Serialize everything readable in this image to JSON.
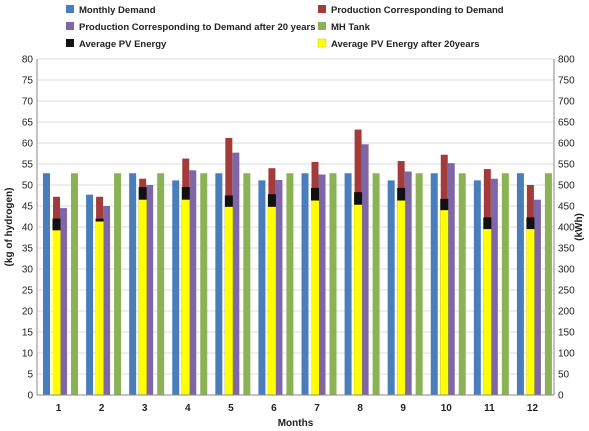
{
  "chart_data": {
    "type": "bar",
    "categories": [
      "1",
      "2",
      "3",
      "4",
      "5",
      "6",
      "7",
      "8",
      "9",
      "10",
      "11",
      "12"
    ],
    "xlabel": "Months",
    "ylabel_left": "(kg of hydrogen)",
    "ylabel_right": "(kWh)",
    "ylim_left": [
      0,
      80
    ],
    "ylim_right": [
      0,
      800
    ],
    "yticks_left": [
      "0",
      "5",
      "10",
      "15",
      "20",
      "25",
      "30",
      "35",
      "40",
      "45",
      "50",
      "55",
      "60",
      "65",
      "70",
      "75",
      "80"
    ],
    "yticks_right": [
      "0",
      "50",
      "100",
      "150",
      "200",
      "250",
      "300",
      "350",
      "400",
      "450",
      "500",
      "550",
      "600",
      "650",
      "700",
      "750",
      "800"
    ],
    "grid": true,
    "legend_position": "top",
    "series": [
      {
        "name": "Monthly Demand",
        "axis": "left",
        "color": "#4a7ebb",
        "values": [
          52.8,
          47.7,
          52.8,
          51.1,
          52.8,
          51.1,
          52.8,
          52.8,
          51.1,
          52.8,
          51.1,
          52.8
        ]
      },
      {
        "name": "Production Corresponding to Demand",
        "axis": "left",
        "color": "#a33b3b",
        "values": [
          47.2,
          47.2,
          51.5,
          56.3,
          61.2,
          54.0,
          55.5,
          63.2,
          55.7,
          57.2,
          53.8,
          50.0
        ]
      },
      {
        "name": "Production Corresponding to Demand after 20 years",
        "axis": "left",
        "color": "#7f66a6",
        "values": [
          44.5,
          45.0,
          50.0,
          53.5,
          57.7,
          51.2,
          52.5,
          59.7,
          53.2,
          55.2,
          51.5,
          46.5
        ]
      },
      {
        "name": "MH Tank",
        "axis": "left",
        "color": "#8bb356",
        "values": [
          52.8,
          52.8,
          52.8,
          52.8,
          52.8,
          52.8,
          52.8,
          52.8,
          52.8,
          52.8,
          52.8,
          52.8
        ]
      },
      {
        "name": "Average PV Energy",
        "axis": "right",
        "color": "#111111",
        "values": [
          420,
          420,
          495,
          495,
          475,
          478,
          493,
          483,
          493,
          467,
          423,
          423
        ]
      },
      {
        "name": "Average PV Energy after 20years",
        "axis": "right",
        "color": "#ffff00",
        "values": [
          392,
          413,
          465,
          465,
          448,
          448,
          463,
          453,
          463,
          440,
          395,
          395
        ]
      }
    ]
  }
}
